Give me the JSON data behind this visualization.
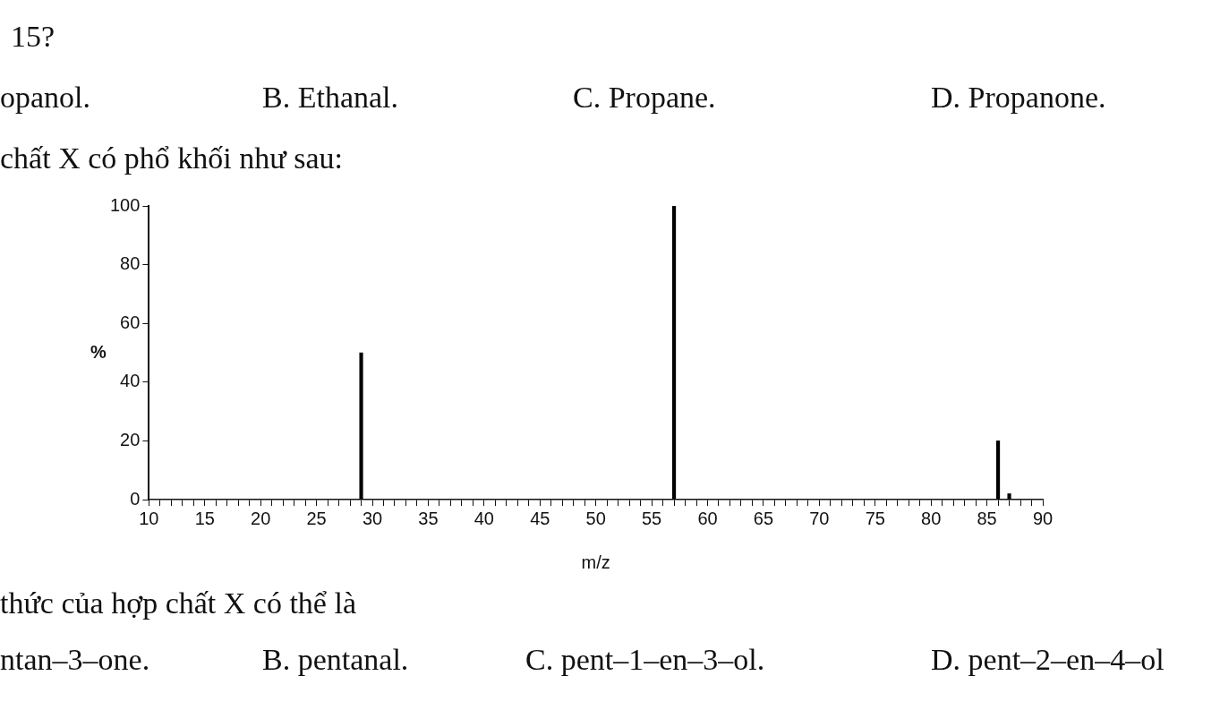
{
  "chart_data": {
    "type": "bar",
    "xlabel": "m/z",
    "ylabel": "%",
    "series": [
      {
        "color": "#000000",
        "x": [
          29,
          57,
          86,
          87
        ],
        "values": [
          50,
          100,
          20,
          2
        ]
      }
    ],
    "xlim": [
      10,
      90
    ],
    "ylim": [
      0,
      100
    ],
    "xticks": [
      10,
      {
        "value": 11,
        "label": null
      },
      {
        "value": 12,
        "label": null
      },
      {
        "value": 13,
        "label": null
      },
      {
        "value": 14,
        "label": null
      },
      15,
      {
        "value": 16,
        "label": null
      },
      {
        "value": 17,
        "label": null
      },
      {
        "value": 18,
        "label": null
      },
      {
        "value": 19,
        "label": null
      },
      20,
      {
        "value": 21,
        "label": null
      },
      {
        "value": 22,
        "label": null
      },
      {
        "value": 23,
        "label": null
      },
      {
        "value": 24,
        "label": null
      },
      25,
      {
        "value": 26,
        "label": null
      },
      {
        "value": 27,
        "label": null
      },
      {
        "value": 28,
        "label": null
      },
      {
        "value": 29,
        "label": null
      },
      30,
      {
        "value": 31,
        "label": null
      },
      {
        "value": 32,
        "label": null
      },
      {
        "value": 33,
        "label": null
      },
      {
        "value": 34,
        "label": null
      },
      35,
      {
        "value": 36,
        "label": null
      },
      {
        "value": 37,
        "label": null
      },
      {
        "value": 38,
        "label": null
      },
      {
        "value": 39,
        "label": null
      },
      40,
      {
        "value": 41,
        "label": null
      },
      {
        "value": 42,
        "label": null
      },
      {
        "value": 43,
        "label": null
      },
      {
        "value": 44,
        "label": null
      },
      45,
      {
        "value": 46,
        "label": null
      },
      {
        "value": 47,
        "label": null
      },
      {
        "value": 48,
        "label": null
      },
      {
        "value": 49,
        "label": null
      },
      50,
      {
        "value": 51,
        "label": null
      },
      {
        "value": 52,
        "label": null
      },
      {
        "value": 53,
        "label": null
      },
      {
        "value": 54,
        "label": null
      },
      55,
      {
        "value": 56,
        "label": null
      },
      {
        "value": 57,
        "label": null
      },
      {
        "value": 58,
        "label": null
      },
      {
        "value": 59,
        "label": null
      },
      60,
      {
        "value": 61,
        "label": null
      },
      {
        "value": 62,
        "label": null
      },
      {
        "value": 63,
        "label": null
      },
      {
        "value": 64,
        "label": null
      },
      65,
      {
        "value": 66,
        "label": null
      },
      {
        "value": 67,
        "label": null
      },
      {
        "value": 68,
        "label": null
      },
      {
        "value": 69,
        "label": null
      },
      70,
      {
        "value": 71,
        "label": null
      },
      {
        "value": 72,
        "label": null
      },
      {
        "value": 73,
        "label": null
      },
      {
        "value": 74,
        "label": null
      },
      75,
      {
        "value": 76,
        "label": null
      },
      {
        "value": 77,
        "label": null
      },
      {
        "value": 78,
        "label": null
      },
      {
        "value": 79,
        "label": null
      },
      80,
      {
        "value": 81,
        "label": null
      },
      {
        "value": 82,
        "label": null
      },
      {
        "value": 83,
        "label": null
      },
      {
        "value": 84,
        "label": null
      },
      85,
      {
        "value": 86,
        "label": null
      },
      {
        "value": 87,
        "label": null
      },
      {
        "value": 88,
        "label": null
      },
      {
        "value": 89,
        "label": null
      },
      90
    ],
    "yticks": [
      0,
      20,
      40,
      60,
      80,
      100
    ],
    "grid": false,
    "legend": false,
    "annotations": [
      "15?",
      "opanol.",
      "B. Ethanal.",
      "C. Propane.",
      "D. Propanone.",
      "chất X có phổ khối như sau:",
      "thức của hợp chất X có thể là",
      "ntan–3–one.",
      "B. pentanal.",
      "C. pent–1–en–3–ol.",
      "D. pent–2–en–4–ol"
    ]
  }
}
